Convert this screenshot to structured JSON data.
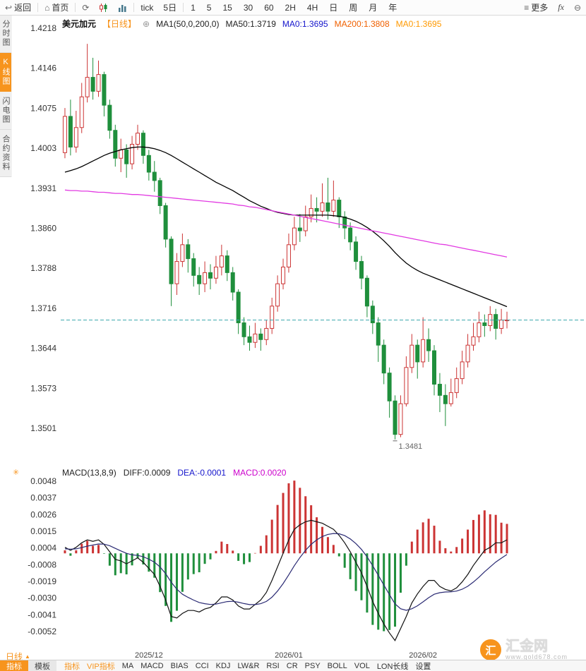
{
  "toolbar": {
    "back_label": "返回",
    "home_label": "首页",
    "tick_label": "tick",
    "five_day_label": "5日",
    "timeframes": [
      "1",
      "5",
      "15",
      "30",
      "60",
      "2H",
      "4H",
      "日",
      "周",
      "月",
      "年"
    ],
    "more_label": "更多",
    "fx_label": "fx"
  },
  "sidebar": {
    "items": [
      {
        "label": "分时图",
        "active": false
      },
      {
        "label": "K线图",
        "active": true
      },
      {
        "label": "闪电图",
        "active": false
      },
      {
        "label": "合约资料",
        "active": false
      }
    ]
  },
  "chart_header": {
    "symbol": "美元加元",
    "period": "【日线】",
    "ma_config": "MA1(50,0,200,0)",
    "ma50": "MA50:1.3719",
    "ma0_a": "MA0:1.3695",
    "ma200": "MA200:1.3808",
    "ma0_b": "MA0:1.3695"
  },
  "macd_header": {
    "title": "MACD(13,8,9)",
    "diff": "DIFF:0.0009",
    "dea": "DEA:-0.0001",
    "macd": "MACD:0.0020"
  },
  "bottom": {
    "period_selector": "日线",
    "tabs_left": [
      {
        "label": "指标",
        "active": true
      },
      {
        "label": "模板",
        "active": false
      }
    ],
    "indicator_tabs": [
      {
        "label": "指标",
        "accent": true
      },
      {
        "label": "VIP指标",
        "accent": true
      },
      {
        "label": "MA",
        "accent": false
      },
      {
        "label": "MACD",
        "accent": false
      },
      {
        "label": "BIAS",
        "accent": false
      },
      {
        "label": "CCI",
        "accent": false
      },
      {
        "label": "KDJ",
        "accent": false
      },
      {
        "label": "LW&R",
        "accent": false
      },
      {
        "label": "RSI",
        "accent": false
      },
      {
        "label": "CR",
        "accent": false
      },
      {
        "label": "PSY",
        "accent": false
      },
      {
        "label": "BOLL",
        "accent": false
      },
      {
        "label": "VOL",
        "accent": false
      },
      {
        "label": "LON长线",
        "accent": false
      },
      {
        "label": "设置",
        "accent": false
      }
    ],
    "watermark": {
      "name": "汇金网",
      "url": "www.gold678.com",
      "logo_char": "汇"
    }
  },
  "chart_data": {
    "type": "candlestick",
    "title": "美元加元 日线 USD/CAD daily with MACD(13,8,9)",
    "price_axis": {
      "max": 1.4218,
      "min": 1.3501,
      "ticks": [
        "1.4218",
        "1.4146",
        "1.4075",
        "1.4003",
        "1.3931",
        "1.3860",
        "1.3788",
        "1.3716",
        "1.3644",
        "1.3573",
        "1.3501"
      ]
    },
    "time_ticks": [
      {
        "label": "2025/12",
        "index": 15
      },
      {
        "label": "2026/01",
        "index": 40
      },
      {
        "label": "2026/02",
        "index": 64
      }
    ],
    "current_price": 1.3695,
    "low_marker": {
      "label": "1.3481",
      "index": 59
    },
    "candles": [
      [
        1.3995,
        1.4075,
        1.3985,
        1.406
      ],
      [
        1.406,
        1.409,
        1.399,
        1.4005
      ],
      [
        1.4005,
        1.407,
        1.3995,
        1.404
      ],
      [
        1.404,
        1.412,
        1.403,
        1.4095
      ],
      [
        1.4095,
        1.419,
        1.4085,
        1.413
      ],
      [
        1.413,
        1.4165,
        1.409,
        1.4105
      ],
      [
        1.4105,
        1.416,
        1.4095,
        1.4135
      ],
      [
        1.4135,
        1.414,
        1.406,
        1.408
      ],
      [
        1.408,
        1.409,
        1.402,
        1.4035
      ],
      [
        1.4035,
        1.4045,
        1.397,
        1.3985
      ],
      [
        1.3985,
        1.402,
        1.396,
        1.4
      ],
      [
        1.4,
        1.401,
        1.395,
        1.3975
      ],
      [
        1.3975,
        1.4025,
        1.3965,
        1.401
      ],
      [
        1.401,
        1.4045,
        1.4,
        1.403
      ],
      [
        1.403,
        1.4035,
        1.3975,
        1.399
      ],
      [
        1.399,
        1.4,
        1.3945,
        1.396
      ],
      [
        1.396,
        1.398,
        1.3925,
        1.3945
      ],
      [
        1.3945,
        1.395,
        1.3885,
        1.39
      ],
      [
        1.39,
        1.3905,
        1.3825,
        1.384
      ],
      [
        1.384,
        1.3845,
        1.372,
        1.376
      ],
      [
        1.376,
        1.3815,
        1.374,
        1.38
      ],
      [
        1.38,
        1.385,
        1.379,
        1.383
      ],
      [
        1.383,
        1.384,
        1.378,
        1.3805
      ],
      [
        1.3805,
        1.3815,
        1.3755,
        1.3775
      ],
      [
        1.3775,
        1.379,
        1.374,
        1.376
      ],
      [
        1.376,
        1.38,
        1.3745,
        1.378
      ],
      [
        1.378,
        1.3795,
        1.375,
        1.377
      ],
      [
        1.377,
        1.381,
        1.376,
        1.379
      ],
      [
        1.379,
        1.383,
        1.3775,
        1.381
      ],
      [
        1.381,
        1.382,
        1.3765,
        1.378
      ],
      [
        1.378,
        1.379,
        1.373,
        1.3745
      ],
      [
        1.3745,
        1.375,
        1.367,
        1.369
      ],
      [
        1.369,
        1.37,
        1.365,
        1.3665
      ],
      [
        1.3665,
        1.3685,
        1.364,
        1.3655
      ],
      [
        1.3655,
        1.369,
        1.3645,
        1.367
      ],
      [
        1.367,
        1.368,
        1.364,
        1.366
      ],
      [
        1.366,
        1.3695,
        1.365,
        1.368
      ],
      [
        1.368,
        1.3735,
        1.367,
        1.372
      ],
      [
        1.372,
        1.3775,
        1.371,
        1.376
      ],
      [
        1.376,
        1.3805,
        1.375,
        1.379
      ],
      [
        1.379,
        1.385,
        1.378,
        1.383
      ],
      [
        1.383,
        1.388,
        1.382,
        1.386
      ],
      [
        1.386,
        1.3885,
        1.3835,
        1.3855
      ],
      [
        1.3855,
        1.39,
        1.3845,
        1.388
      ],
      [
        1.388,
        1.392,
        1.387,
        1.3895
      ],
      [
        1.3895,
        1.3915,
        1.387,
        1.389
      ],
      [
        1.389,
        1.394,
        1.388,
        1.3905
      ],
      [
        1.3905,
        1.395,
        1.3875,
        1.389
      ],
      [
        1.389,
        1.3945,
        1.388,
        1.391
      ],
      [
        1.391,
        1.3915,
        1.386,
        1.388
      ],
      [
        1.388,
        1.389,
        1.384,
        1.386
      ],
      [
        1.386,
        1.387,
        1.382,
        1.3835
      ],
      [
        1.3835,
        1.3845,
        1.3785,
        1.38
      ],
      [
        1.38,
        1.381,
        1.375,
        1.377
      ],
      [
        1.377,
        1.3775,
        1.37,
        1.372
      ],
      [
        1.372,
        1.373,
        1.367,
        1.369
      ],
      [
        1.369,
        1.37,
        1.362,
        1.365
      ],
      [
        1.365,
        1.366,
        1.358,
        1.36
      ],
      [
        1.36,
        1.361,
        1.352,
        1.355
      ],
      [
        1.355,
        1.356,
        1.3481,
        1.349
      ],
      [
        1.349,
        1.356,
        1.3485,
        1.3545
      ],
      [
        1.3545,
        1.363,
        1.354,
        1.361
      ],
      [
        1.361,
        1.367,
        1.36,
        1.365
      ],
      [
        1.365,
        1.366,
        1.359,
        1.362
      ],
      [
        1.362,
        1.37,
        1.361,
        1.366
      ],
      [
        1.366,
        1.368,
        1.362,
        1.364
      ],
      [
        1.364,
        1.365,
        1.356,
        1.358
      ],
      [
        1.358,
        1.36,
        1.353,
        1.356
      ],
      [
        1.356,
        1.358,
        1.3505,
        1.3545
      ],
      [
        1.3545,
        1.359,
        1.354,
        1.3565
      ],
      [
        1.3565,
        1.361,
        1.3555,
        1.359
      ],
      [
        1.359,
        1.364,
        1.358,
        1.362
      ],
      [
        1.362,
        1.367,
        1.361,
        1.365
      ],
      [
        1.365,
        1.369,
        1.364,
        1.3665
      ],
      [
        1.3665,
        1.371,
        1.3655,
        1.369
      ],
      [
        1.369,
        1.3705,
        1.3665,
        1.3685
      ],
      [
        1.3685,
        1.372,
        1.3675,
        1.3705
      ],
      [
        1.3705,
        1.3715,
        1.366,
        1.368
      ],
      [
        1.368,
        1.3715,
        1.367,
        1.3695
      ],
      [
        1.3695,
        1.371,
        1.368,
        1.3695
      ]
    ],
    "ma50": [
      1.396,
      1.3963,
      1.3966,
      1.397,
      1.3975,
      1.398,
      1.3985,
      1.399,
      1.3994,
      1.3997,
      1.4,
      1.4002,
      1.4004,
      1.4005,
      1.4005,
      1.4004,
      1.4002,
      1.3999,
      1.3995,
      1.399,
      1.3984,
      1.3978,
      1.3972,
      1.3966,
      1.396,
      1.3954,
      1.3948,
      1.3942,
      1.3937,
      1.3932,
      1.3927,
      1.3921,
      1.3915,
      1.3909,
      1.3904,
      1.3899,
      1.3895,
      1.3891,
      1.3888,
      1.3886,
      1.3884,
      1.3883,
      1.3883,
      1.3883,
      1.3883,
      1.3883,
      1.3883,
      1.3883,
      1.3882,
      1.3881,
      1.3879,
      1.3876,
      1.3872,
      1.3867,
      1.3861,
      1.3854,
      1.3846,
      1.3837,
      1.3827,
      1.3816,
      1.3806,
      1.3797,
      1.379,
      1.3784,
      1.3779,
      1.3775,
      1.3771,
      1.3767,
      1.3763,
      1.3759,
      1.3755,
      1.3751,
      1.3747,
      1.3743,
      1.3739,
      1.3735,
      1.3731,
      1.3727,
      1.3723,
      1.3719
    ],
    "ma200": [
      1.3928,
      1.3927,
      1.3927,
      1.3926,
      1.3926,
      1.3925,
      1.3924,
      1.3924,
      1.3923,
      1.3922,
      1.3922,
      1.3921,
      1.392,
      1.392,
      1.3919,
      1.3918,
      1.3917,
      1.3916,
      1.3915,
      1.3914,
      1.3913,
      1.3912,
      1.3911,
      1.391,
      1.3909,
      1.3908,
      1.3907,
      1.3906,
      1.3905,
      1.3904,
      1.3903,
      1.3901,
      1.39,
      1.3898,
      1.3897,
      1.3895,
      1.3893,
      1.3891,
      1.3889,
      1.3887,
      1.3885,
      1.3883,
      1.3881,
      1.3879,
      1.3877,
      1.3875,
      1.3873,
      1.3871,
      1.3869,
      1.3867,
      1.3865,
      1.3863,
      1.3861,
      1.3859,
      1.3857,
      1.3855,
      1.3853,
      1.3851,
      1.3849,
      1.3847,
      1.3845,
      1.3843,
      1.3841,
      1.3839,
      1.3837,
      1.3835,
      1.3833,
      1.3831,
      1.383,
      1.3828,
      1.3826,
      1.3824,
      1.3822,
      1.382,
      1.3818,
      1.3816,
      1.3814,
      1.3812,
      1.381,
      1.3808
    ],
    "macd": {
      "params": "13,8,9",
      "diff_last": 0.0009,
      "dea_last": -0.0001,
      "macd_last": 0.002,
      "axis": {
        "max": 0.0048,
        "min": -0.0052,
        "ticks": [
          "0.0048",
          "0.0037",
          "0.0026",
          "0.0015",
          "0.0004",
          "-0.0008",
          "-0.0019",
          "-0.0030",
          "-0.0041",
          "-0.0052"
        ]
      },
      "diff": [
        0.0004,
        0.0002,
        0.0004,
        0.0007,
        0.0009,
        0.0008,
        0.0009,
        0.0006,
        0.0001,
        -0.0004,
        -0.0005,
        -0.0007,
        -0.0005,
        -0.0003,
        -0.0006,
        -0.001,
        -0.0014,
        -0.0022,
        -0.0031,
        -0.0042,
        -0.0043,
        -0.004,
        -0.0038,
        -0.0038,
        -0.0039,
        -0.0037,
        -0.0036,
        -0.0033,
        -0.0029,
        -0.0029,
        -0.0031,
        -0.0035,
        -0.0037,
        -0.0037,
        -0.0034,
        -0.0031,
        -0.0026,
        -0.0018,
        -0.0009,
        0.0,
        0.0009,
        0.0016,
        0.0019,
        0.0021,
        0.0022,
        0.0021,
        0.002,
        0.0018,
        0.0016,
        0.0012,
        0.0007,
        0.0001,
        -0.0006,
        -0.0013,
        -0.0022,
        -0.0032,
        -0.004,
        -0.0047,
        -0.0053,
        -0.0058,
        -0.005,
        -0.0042,
        -0.0033,
        -0.0027,
        -0.0022,
        -0.0018,
        -0.0018,
        -0.0022,
        -0.0024,
        -0.0025,
        -0.0023,
        -0.0019,
        -0.0014,
        -0.0008,
        -0.0003,
        0.0002,
        0.0004,
        0.0007,
        0.0007,
        0.0009
      ],
      "dea": [
        0.0003,
        0.00028,
        0.0003,
        0.00038,
        0.00048,
        0.00055,
        0.00062,
        0.00061,
        0.00051,
        0.00033,
        0.00016,
        0.0,
        -0.0001,
        -0.00014,
        -0.00023,
        -0.00039,
        -0.00059,
        -0.00091,
        -0.00135,
        -0.00192,
        -0.00239,
        -0.00272,
        -0.00293,
        -0.00311,
        -0.00327,
        -0.00335,
        -0.0034,
        -0.00338,
        -0.00329,
        -0.00321,
        -0.00319,
        -0.00325,
        -0.00334,
        -0.00341,
        -0.00341,
        -0.00335,
        -0.0032,
        -0.00292,
        -0.00251,
        -0.00201,
        -0.00143,
        -0.00082,
        -0.00028,
        0.0002,
        0.0006,
        0.0009,
        0.00112,
        0.00126,
        0.00132,
        0.0013,
        0.00118,
        0.00096,
        0.00065,
        0.00026,
        -0.00023,
        -0.00082,
        -0.00146,
        -0.00211,
        -0.00275,
        -0.00336,
        -0.00369,
        -0.00379,
        -0.00369,
        -0.00349,
        -0.00323,
        -0.00295,
        -0.00272,
        -0.00262,
        -0.00257,
        -0.00256,
        -0.00251,
        -0.00239,
        -0.00219,
        -0.00191,
        -0.00159,
        -0.00123,
        -0.0009,
        -0.00058,
        -0.00032,
        -8e-05
      ]
    },
    "colors": {
      "up": "#cc3434",
      "down": "#1f8f3c",
      "ma50": "#000000",
      "ma200": "#e23ae2",
      "current_price_line": "#3aa7ad",
      "diff_line": "#101010",
      "dea_line": "#2b2b74",
      "axis_text": "#333333"
    }
  }
}
